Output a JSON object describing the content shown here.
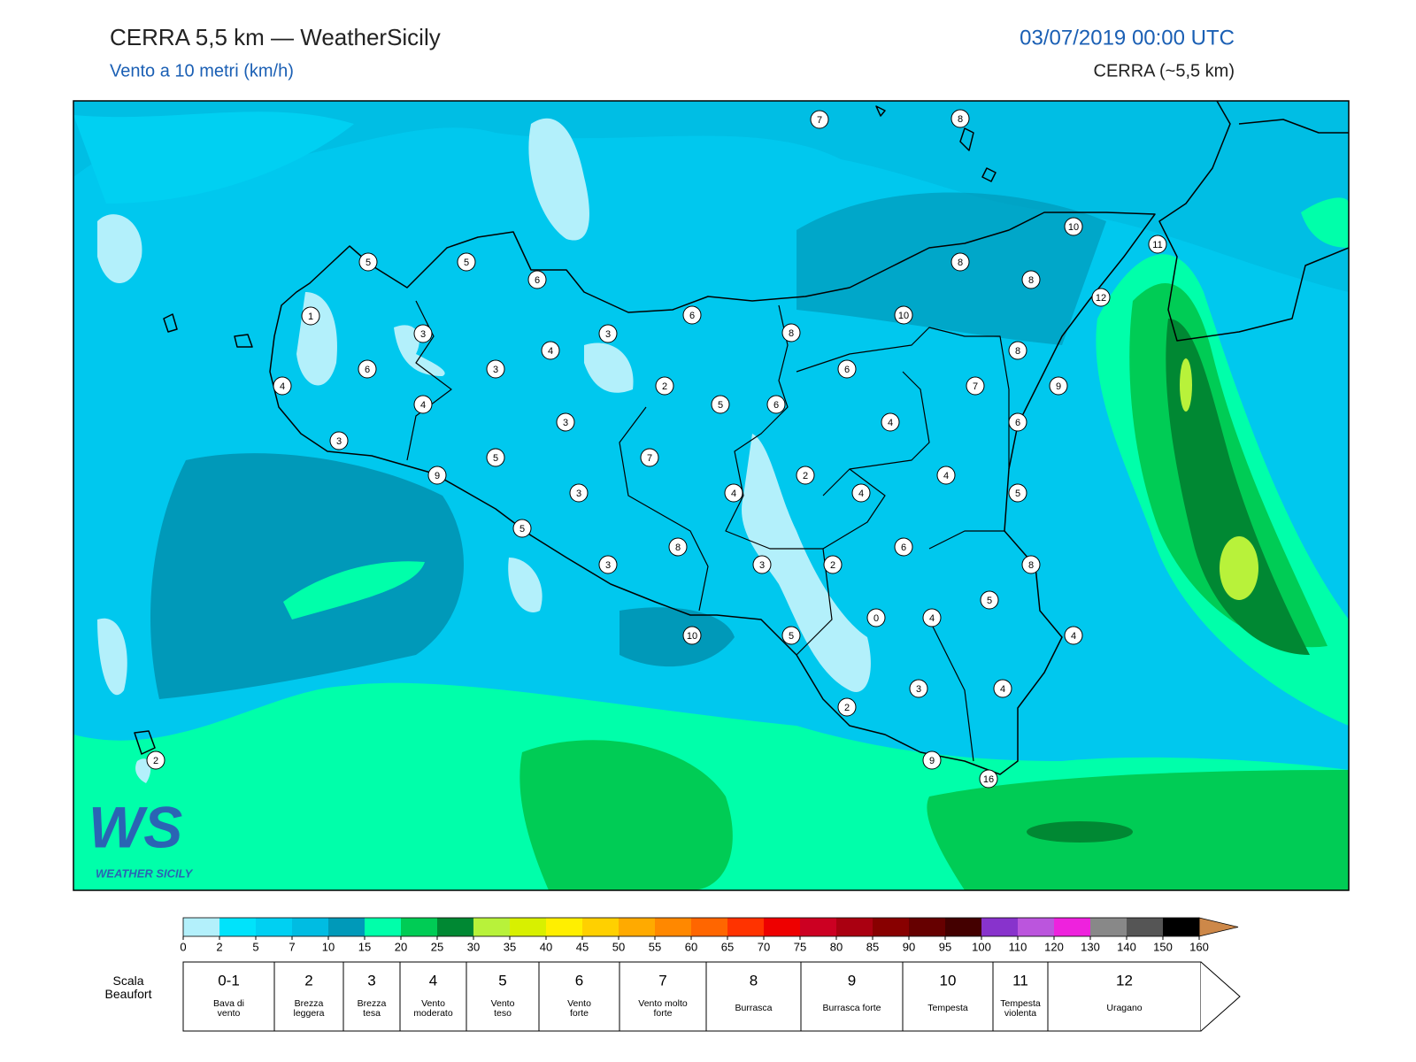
{
  "header": {
    "title": "CERRA 5,5 km — WeatherSicily",
    "subtitle": "Vento a 10 metri (km/h)",
    "date": "03/07/2019 00:00 UTC",
    "model": "CERRA (~5,5 km)"
  },
  "map": {
    "stations": [
      7,
      8,
      10,
      11,
      12,
      8,
      8,
      10,
      5,
      5,
      6,
      6,
      1,
      3,
      3,
      8,
      8,
      4,
      6,
      3,
      6,
      4,
      2,
      7,
      9,
      5,
      6,
      4,
      3,
      4,
      6,
      3,
      5,
      7,
      9,
      2,
      4,
      3,
      4,
      4,
      5,
      5,
      6,
      8,
      3,
      3,
      2,
      8,
      5,
      0,
      4,
      10,
      5,
      4,
      3,
      4,
      2,
      9,
      16,
      2
    ],
    "logo": {
      "mark": "WS",
      "text": "WEATHER SICILY"
    }
  },
  "colorbar": {
    "ticks": [
      0,
      2,
      5,
      7,
      10,
      15,
      20,
      25,
      30,
      35,
      40,
      45,
      50,
      55,
      60,
      65,
      70,
      75,
      80,
      85,
      90,
      95,
      100,
      110,
      120,
      130,
      140,
      150,
      160
    ],
    "colors": [
      "#b3f0fb",
      "#00e3fb",
      "#00d0f2",
      "#00bce2",
      "#0099b9",
      "#00ffaa",
      "#00cc55",
      "#008833",
      "#b8f23a",
      "#d8f000",
      "#ffef00",
      "#ffd000",
      "#ffaa00",
      "#ff8800",
      "#ff6600",
      "#ff3300",
      "#ee0000",
      "#cc0022",
      "#aa0011",
      "#880000",
      "#660000",
      "#440000",
      "#8833cc",
      "#bb55dd",
      "#ee22dd",
      "#888888",
      "#555555",
      "#000000",
      "#884422",
      "#cd8849"
    ]
  },
  "beaufort": {
    "label": "Scala Beaufort",
    "cells": [
      {
        "force": "0-1",
        "name": "Bava di vento"
      },
      {
        "force": "2",
        "name": "Brezza leggera"
      },
      {
        "force": "3",
        "name": "Brezza tesa"
      },
      {
        "force": "4",
        "name": "Vento moderato"
      },
      {
        "force": "5",
        "name": "Vento teso"
      },
      {
        "force": "6",
        "name": "Vento forte"
      },
      {
        "force": "7",
        "name": "Vento molto forte"
      },
      {
        "force": "8",
        "name": "Burrasca"
      },
      {
        "force": "9",
        "name": "Burrasca forte"
      },
      {
        "force": "10",
        "name": "Tempesta"
      },
      {
        "force": "11",
        "name": "Tempesta violenta"
      },
      {
        "force": "12",
        "name": "Uragano"
      }
    ]
  }
}
